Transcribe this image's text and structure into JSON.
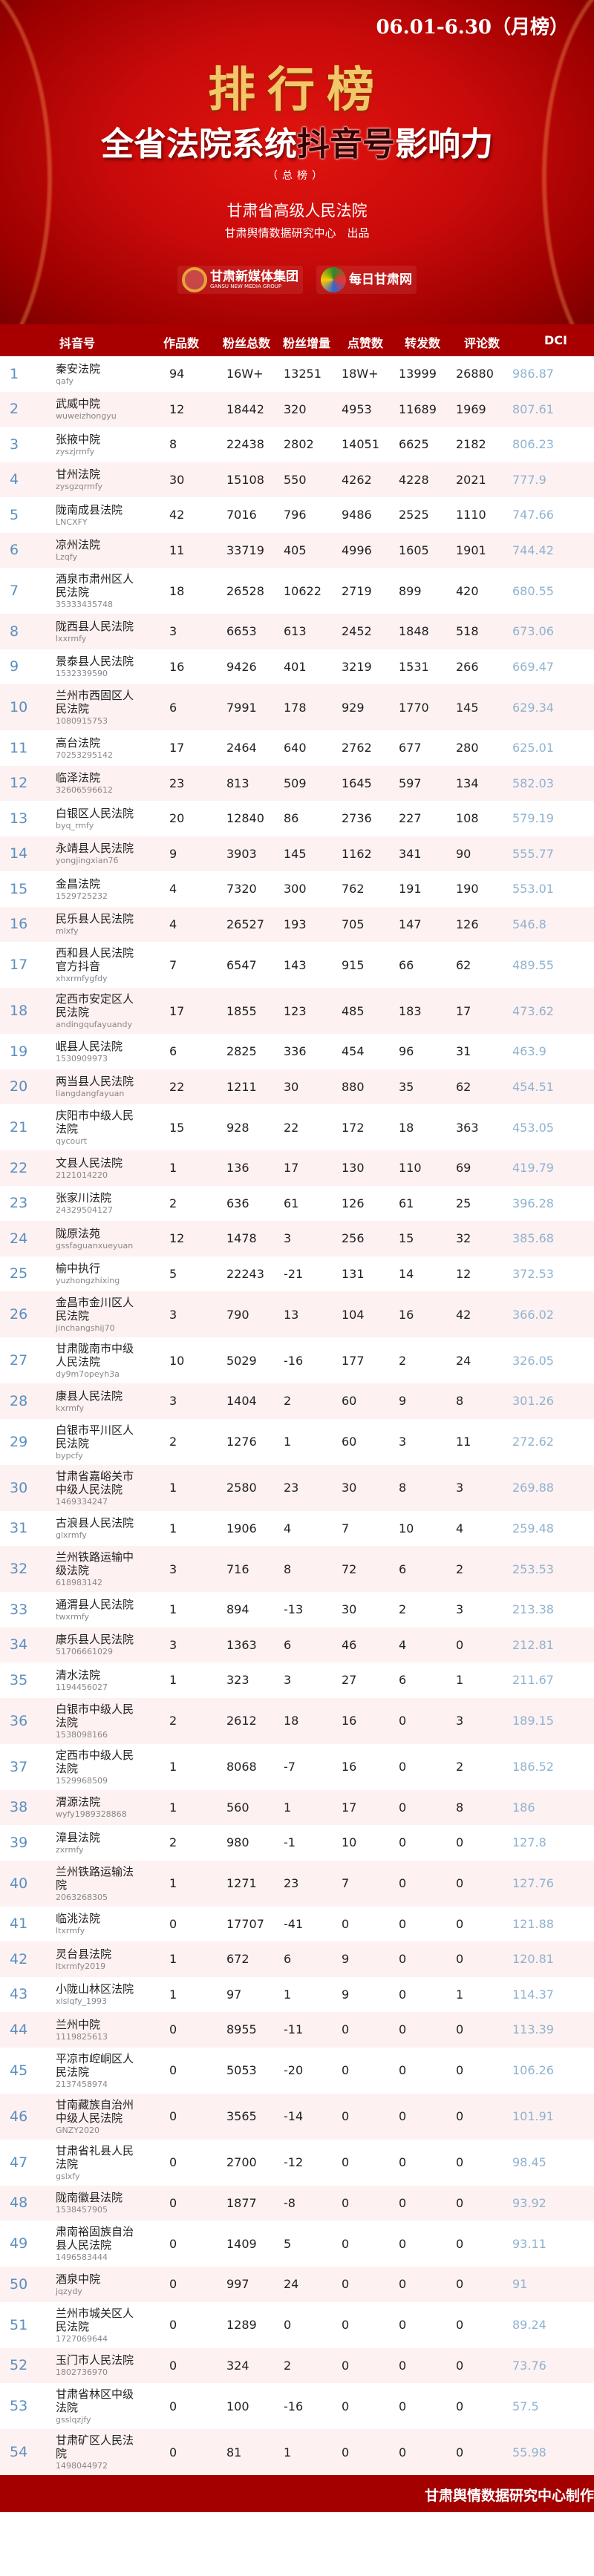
{
  "header": {
    "period": "06.01-6.30（月榜）",
    "ranking_label": "排行榜",
    "title_prefix": "全省法院系统",
    "title_highlight": "抖音号",
    "title_suffix": "影响力",
    "subtitle": "（总榜）",
    "organizer": "甘肃省高级人民法院",
    "producer": "甘肃舆情数据研究中心　出品",
    "logos": [
      {
        "name": "甘肃新媒体集团",
        "sub": "GANSU NEW MEDIA GROUP"
      },
      {
        "name": "每日甘肃网",
        "sub": ""
      }
    ]
  },
  "colors": {
    "header_bar": "#a80000",
    "rank": "#5b8fc0",
    "dci": "#8fb3d0",
    "stripe": "#fdf1f1"
  },
  "table": {
    "columns": [
      "抖音号",
      "作品数",
      "粉丝总数",
      "粉丝增量",
      "点赞数",
      "转发数",
      "评论数",
      "DCI"
    ],
    "rows": [
      {
        "rank": "1",
        "name": "秦安法院",
        "id": "qafy",
        "works": "94",
        "fans": "16W+",
        "fans_inc": "13251",
        "likes": "18W+",
        "shares": "13999",
        "comments": "26880",
        "dci": "986.87"
      },
      {
        "rank": "2",
        "name": "武威中院",
        "id": "wuweizhongyu",
        "works": "12",
        "fans": "18442",
        "fans_inc": "320",
        "likes": "4953",
        "shares": "11689",
        "comments": "1969",
        "dci": "807.61"
      },
      {
        "rank": "3",
        "name": "张掖中院",
        "id": "zyszjrmfy",
        "works": "8",
        "fans": "22438",
        "fans_inc": "2802",
        "likes": "14051",
        "shares": "6625",
        "comments": "2182",
        "dci": "806.23"
      },
      {
        "rank": "4",
        "name": "甘州法院",
        "id": "zysgzqrmfy",
        "works": "30",
        "fans": "15108",
        "fans_inc": "550",
        "likes": "4262",
        "shares": "4228",
        "comments": "2021",
        "dci": "777.9"
      },
      {
        "rank": "5",
        "name": "陇南成县法院",
        "id": "LNCXFY",
        "works": "42",
        "fans": "7016",
        "fans_inc": "796",
        "likes": "9486",
        "shares": "2525",
        "comments": "1110",
        "dci": "747.66"
      },
      {
        "rank": "6",
        "name": "凉州法院",
        "id": "Lzqfy",
        "works": "11",
        "fans": "33719",
        "fans_inc": "405",
        "likes": "4996",
        "shares": "1605",
        "comments": "1901",
        "dci": "744.42"
      },
      {
        "rank": "7",
        "name": "酒泉市肃州区人民法院",
        "id": "35333435748",
        "works": "18",
        "fans": "26528",
        "fans_inc": "10622",
        "likes": "2719",
        "shares": "899",
        "comments": "420",
        "dci": "680.55"
      },
      {
        "rank": "8",
        "name": "陇西县人民法院",
        "id": "lxxrmfy",
        "works": "3",
        "fans": "6653",
        "fans_inc": "613",
        "likes": "2452",
        "shares": "1848",
        "comments": "518",
        "dci": "673.06"
      },
      {
        "rank": "9",
        "name": "景泰县人民法院",
        "id": "1532339590",
        "works": "16",
        "fans": "9426",
        "fans_inc": "401",
        "likes": "3219",
        "shares": "1531",
        "comments": "266",
        "dci": "669.47"
      },
      {
        "rank": "10",
        "name": "兰州市西固区人民法院",
        "id": "1080915753",
        "works": "6",
        "fans": "7991",
        "fans_inc": "178",
        "likes": "929",
        "shares": "1770",
        "comments": "145",
        "dci": "629.34"
      },
      {
        "rank": "11",
        "name": "高台法院",
        "id": "70253295142",
        "works": "17",
        "fans": "2464",
        "fans_inc": "640",
        "likes": "2762",
        "shares": "677",
        "comments": "280",
        "dci": "625.01"
      },
      {
        "rank": "12",
        "name": "临泽法院",
        "id": "32606596612",
        "works": "23",
        "fans": "813",
        "fans_inc": "509",
        "likes": "1645",
        "shares": "597",
        "comments": "134",
        "dci": "582.03"
      },
      {
        "rank": "13",
        "name": "白银区人民法院",
        "id": "byq_rmfy",
        "works": "20",
        "fans": "12840",
        "fans_inc": "86",
        "likes": "2736",
        "shares": "227",
        "comments": "108",
        "dci": "579.19"
      },
      {
        "rank": "14",
        "name": "永靖县人民法院",
        "id": "yongjingxian76",
        "works": "9",
        "fans": "3903",
        "fans_inc": "145",
        "likes": "1162",
        "shares": "341",
        "comments": "90",
        "dci": "555.77"
      },
      {
        "rank": "15",
        "name": "金昌法院",
        "id": "1529725232",
        "works": "4",
        "fans": "7320",
        "fans_inc": "300",
        "likes": "762",
        "shares": "191",
        "comments": "190",
        "dci": "553.01"
      },
      {
        "rank": "16",
        "name": "民乐县人民法院",
        "id": "mlxfy",
        "works": "4",
        "fans": "26527",
        "fans_inc": "193",
        "likes": "705",
        "shares": "147",
        "comments": "126",
        "dci": "546.8"
      },
      {
        "rank": "17",
        "name": "西和县人民法院官方抖音",
        "id": "xhxrmfygfdy",
        "works": "7",
        "fans": "6547",
        "fans_inc": "143",
        "likes": "915",
        "shares": "66",
        "comments": "62",
        "dci": "489.55"
      },
      {
        "rank": "18",
        "name": "定西市安定区人民法院",
        "id": "andingqufayuandy",
        "works": "17",
        "fans": "1855",
        "fans_inc": "123",
        "likes": "485",
        "shares": "183",
        "comments": "17",
        "dci": "473.62"
      },
      {
        "rank": "19",
        "name": "岷县人民法院",
        "id": "1530909973",
        "works": "6",
        "fans": "2825",
        "fans_inc": "336",
        "likes": "454",
        "shares": "96",
        "comments": "31",
        "dci": "463.9"
      },
      {
        "rank": "20",
        "name": "两当县人民法院",
        "id": "liangdangfayuan",
        "works": "22",
        "fans": "1211",
        "fans_inc": "30",
        "likes": "880",
        "shares": "35",
        "comments": "62",
        "dci": "454.51"
      },
      {
        "rank": "21",
        "name": "庆阳市中级人民法院",
        "id": "qycourt",
        "works": "15",
        "fans": "928",
        "fans_inc": "22",
        "likes": "172",
        "shares": "18",
        "comments": "363",
        "dci": "453.05"
      },
      {
        "rank": "22",
        "name": "文县人民法院",
        "id": "2121014220",
        "works": "1",
        "fans": "136",
        "fans_inc": "17",
        "likes": "130",
        "shares": "110",
        "comments": "69",
        "dci": "419.79"
      },
      {
        "rank": "23",
        "name": "张家川法院",
        "id": "24329504127",
        "works": "2",
        "fans": "636",
        "fans_inc": "61",
        "likes": "126",
        "shares": "61",
        "comments": "25",
        "dci": "396.28"
      },
      {
        "rank": "24",
        "name": "陇原法苑",
        "id": "gssfaguanxueyuan",
        "works": "12",
        "fans": "1478",
        "fans_inc": "3",
        "likes": "256",
        "shares": "15",
        "comments": "32",
        "dci": "385.68"
      },
      {
        "rank": "25",
        "name": "榆中执行",
        "id": "yuzhongzhixing",
        "works": "5",
        "fans": "22243",
        "fans_inc": "-21",
        "likes": "131",
        "shares": "14",
        "comments": "12",
        "dci": "372.53"
      },
      {
        "rank": "26",
        "name": "金昌市金川区人民法院",
        "id": "jinchangshij70",
        "works": "3",
        "fans": "790",
        "fans_inc": "13",
        "likes": "104",
        "shares": "16",
        "comments": "42",
        "dci": "366.02"
      },
      {
        "rank": "27",
        "name": "甘肃陇南市中级人民法院",
        "id": "dy9m7opeyh3a",
        "works": "10",
        "fans": "5029",
        "fans_inc": "-16",
        "likes": "177",
        "shares": "2",
        "comments": "24",
        "dci": "326.05"
      },
      {
        "rank": "28",
        "name": "康县人民法院",
        "id": "kxrmfy",
        "works": "3",
        "fans": "1404",
        "fans_inc": "2",
        "likes": "60",
        "shares": "9",
        "comments": "8",
        "dci": "301.26"
      },
      {
        "rank": "29",
        "name": "白银市平川区人民法院",
        "id": "bypcfy",
        "works": "2",
        "fans": "1276",
        "fans_inc": "1",
        "likes": "60",
        "shares": "3",
        "comments": "11",
        "dci": "272.62"
      },
      {
        "rank": "30",
        "name": "甘肃省嘉峪关市中级人民法院",
        "id": "1469334247",
        "works": "1",
        "fans": "2580",
        "fans_inc": "23",
        "likes": "30",
        "shares": "8",
        "comments": "3",
        "dci": "269.88"
      },
      {
        "rank": "31",
        "name": "古浪县人民法院",
        "id": "glxrmfy",
        "works": "1",
        "fans": "1906",
        "fans_inc": "4",
        "likes": "7",
        "shares": "10",
        "comments": "4",
        "dci": "259.48"
      },
      {
        "rank": "32",
        "name": "兰州铁路运输中级法院",
        "id": "618983142",
        "works": "3",
        "fans": "716",
        "fans_inc": "8",
        "likes": "72",
        "shares": "6",
        "comments": "2",
        "dci": "253.53"
      },
      {
        "rank": "33",
        "name": "通渭县人民法院",
        "id": "twxrmfy",
        "works": "1",
        "fans": "894",
        "fans_inc": "-13",
        "likes": "30",
        "shares": "2",
        "comments": "3",
        "dci": "213.38"
      },
      {
        "rank": "34",
        "name": "康乐县人民法院",
        "id": "51706661029",
        "works": "3",
        "fans": "1363",
        "fans_inc": "6",
        "likes": "46",
        "shares": "4",
        "comments": "0",
        "dci": "212.81"
      },
      {
        "rank": "35",
        "name": "清水法院",
        "id": "1194456027",
        "works": "1",
        "fans": "323",
        "fans_inc": "3",
        "likes": "27",
        "shares": "6",
        "comments": "1",
        "dci": "211.67"
      },
      {
        "rank": "36",
        "name": "白银市中级人民法院",
        "id": "1538098166",
        "works": "2",
        "fans": "2612",
        "fans_inc": "18",
        "likes": "16",
        "shares": "0",
        "comments": "3",
        "dci": "189.15"
      },
      {
        "rank": "37",
        "name": "定西市中级人民法院",
        "id": "1529968509",
        "works": "1",
        "fans": "8068",
        "fans_inc": "-7",
        "likes": "16",
        "shares": "0",
        "comments": "2",
        "dci": "186.52"
      },
      {
        "rank": "38",
        "name": "渭源法院",
        "id": "wyfy1989328868",
        "works": "1",
        "fans": "560",
        "fans_inc": "1",
        "likes": "17",
        "shares": "0",
        "comments": "8",
        "dci": "186"
      },
      {
        "rank": "39",
        "name": "漳县法院",
        "id": "zxrmfy",
        "works": "2",
        "fans": "980",
        "fans_inc": "-1",
        "likes": "10",
        "shares": "0",
        "comments": "0",
        "dci": "127.8"
      },
      {
        "rank": "40",
        "name": "兰州铁路运输法院",
        "id": "2063268305",
        "works": "1",
        "fans": "1271",
        "fans_inc": "23",
        "likes": "7",
        "shares": "0",
        "comments": "0",
        "dci": "127.76"
      },
      {
        "rank": "41",
        "name": "临洮法院",
        "id": "ltxrmfy",
        "works": "0",
        "fans": "17707",
        "fans_inc": "-41",
        "likes": "0",
        "shares": "0",
        "comments": "0",
        "dci": "121.88"
      },
      {
        "rank": "42",
        "name": "灵台县法院",
        "id": "ltxrmfy2019",
        "works": "1",
        "fans": "672",
        "fans_inc": "6",
        "likes": "9",
        "shares": "0",
        "comments": "0",
        "dci": "120.81"
      },
      {
        "rank": "43",
        "name": "小陇山林区法院",
        "id": "xlslqfy_1993",
        "works": "1",
        "fans": "97",
        "fans_inc": "1",
        "likes": "9",
        "shares": "0",
        "comments": "1",
        "dci": "114.37"
      },
      {
        "rank": "44",
        "name": "兰州中院",
        "id": "1119825613",
        "works": "0",
        "fans": "8955",
        "fans_inc": "-11",
        "likes": "0",
        "shares": "0",
        "comments": "0",
        "dci": "113.39"
      },
      {
        "rank": "45",
        "name": "平凉市崆峒区人民法院",
        "id": "2137458974",
        "works": "0",
        "fans": "5053",
        "fans_inc": "-20",
        "likes": "0",
        "shares": "0",
        "comments": "0",
        "dci": "106.26"
      },
      {
        "rank": "46",
        "name": "甘南藏族自治州中级人民法院",
        "id": "GNZY2020",
        "works": "0",
        "fans": "3565",
        "fans_inc": "-14",
        "likes": "0",
        "shares": "0",
        "comments": "0",
        "dci": "101.91"
      },
      {
        "rank": "47",
        "name": "甘肃省礼县人民法院",
        "id": "gslxfy",
        "works": "0",
        "fans": "2700",
        "fans_inc": "-12",
        "likes": "0",
        "shares": "0",
        "comments": "0",
        "dci": "98.45"
      },
      {
        "rank": "48",
        "name": "陇南徽县法院",
        "id": "1538457905",
        "works": "0",
        "fans": "1877",
        "fans_inc": "-8",
        "likes": "0",
        "shares": "0",
        "comments": "0",
        "dci": "93.92"
      },
      {
        "rank": "49",
        "name": "肃南裕固族自治县人民法院",
        "id": "1496583444",
        "works": "0",
        "fans": "1409",
        "fans_inc": "5",
        "likes": "0",
        "shares": "0",
        "comments": "0",
        "dci": "93.11"
      },
      {
        "rank": "50",
        "name": "酒泉中院",
        "id": "jqzydy",
        "works": "0",
        "fans": "997",
        "fans_inc": "24",
        "likes": "0",
        "shares": "0",
        "comments": "0",
        "dci": "91"
      },
      {
        "rank": "51",
        "name": "兰州市城关区人民法院",
        "id": "1727069644",
        "works": "0",
        "fans": "1289",
        "fans_inc": "0",
        "likes": "0",
        "shares": "0",
        "comments": "0",
        "dci": "89.24"
      },
      {
        "rank": "52",
        "name": "玉门市人民法院",
        "id": "1802736970",
        "works": "0",
        "fans": "324",
        "fans_inc": "2",
        "likes": "0",
        "shares": "0",
        "comments": "0",
        "dci": "73.76"
      },
      {
        "rank": "53",
        "name": "甘肃省林区中级法院",
        "id": "gsslqzjfy",
        "works": "0",
        "fans": "100",
        "fans_inc": "-16",
        "likes": "0",
        "shares": "0",
        "comments": "0",
        "dci": "57.5"
      },
      {
        "rank": "54",
        "name": "甘肃矿区人民法院",
        "id": "1498044972",
        "works": "0",
        "fans": "81",
        "fans_inc": "1",
        "likes": "0",
        "shares": "0",
        "comments": "0",
        "dci": "55.98"
      }
    ]
  },
  "footer": {
    "credit": "甘肃舆情数据研究中心制作"
  }
}
